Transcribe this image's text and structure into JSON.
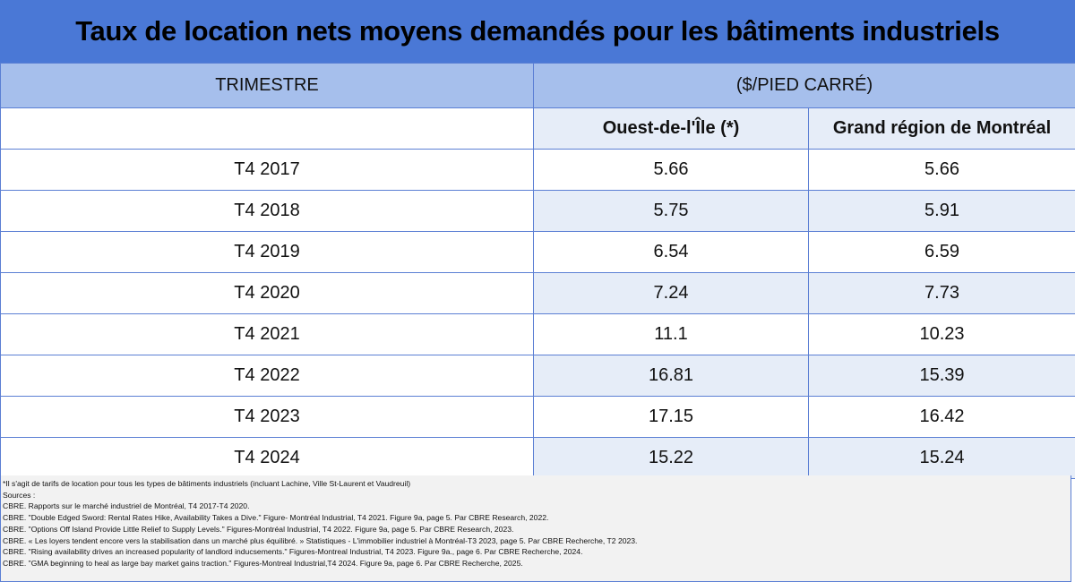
{
  "chart_data": {
    "type": "table",
    "title": "Taux de location nets moyens demandés pour les bâtiments industriels",
    "header": {
      "period_label": "TRIMESTRE",
      "unit_label": "($/PIED CARRÉ)"
    },
    "series": [
      {
        "name": "Ouest-de-l'Île (*)",
        "values": [
          5.66,
          5.75,
          6.54,
          7.24,
          11.1,
          16.81,
          17.15,
          15.22
        ]
      },
      {
        "name": "Grand région de Montréal",
        "values": [
          5.66,
          5.91,
          6.59,
          7.73,
          10.23,
          15.39,
          16.42,
          15.24
        ]
      }
    ],
    "rows": [
      {
        "quarter": "T4 2017",
        "west": "5.66",
        "montreal": "5.66"
      },
      {
        "quarter": "T4 2018",
        "west": "5.75",
        "montreal": "5.91"
      },
      {
        "quarter": "T4 2019",
        "west": "6.54",
        "montreal": "6.59"
      },
      {
        "quarter": "T4 2020",
        "west": "7.24",
        "montreal": "7.73"
      },
      {
        "quarter": "T4 2021",
        "west": "11.1",
        "montreal": "10.23"
      },
      {
        "quarter": "T4 2022",
        "west": "16.81",
        "montreal": "15.39"
      },
      {
        "quarter": "T4 2023",
        "west": "17.15",
        "montreal": "16.42"
      },
      {
        "quarter": "T4 2024",
        "west": "15.22",
        "montreal": "15.24"
      }
    ],
    "notes": [
      "*Il s'agit de tarifs de location pour tous les types de bâtiments industriels (incluant Lachine, Ville St-Laurent et Vaudreuil)",
      "Sources :",
      "CBRE. Rapports sur le marché industriel de Montréal, T4 2017-T4 2020.",
      "CBRE. \"Double Edged Sword: Rental Rates Hike, Availability Takes a Dive.\" Figure- Montréal Industrial, T4 2021. Figure 9a, page 5. Par CBRE Research, 2022.",
      "CBRE. \"Options Off Island Provide Little Relief to Supply Levels.\" Figures-Montréal Industrial, T4 2022. Figure 9a, page 5. Par CBRE Research, 2023.",
      "CBRE. « Les loyers tendent encore vers la stabilisation dans un marché plus équilibré. » Statistiques - L'immobilier industriel à Montréal-T3 2023, page 5. Par CBRE Recherche, T2 2023.",
      "CBRE. \"Rising availability drives an increased popularity of landlord inducsements.\" Figures-Montreal Industrial, T4 2023. Figure 9a., page 6. Par CBRE Recherche, 2024.",
      "CBRE. \"GMA beginning to heal as large bay market gains traction.\" Figures-Montreal Industrial,T4 2024. Figure 9a, page 6. Par CBRE Recherche, 2025."
    ]
  },
  "colors": {
    "title_bg": "#4a78d6",
    "header_bg": "#a6bfec",
    "band_bg": "#e6edf8",
    "border": "#5b7fd4",
    "notes_bg": "#f2f2f2"
  }
}
